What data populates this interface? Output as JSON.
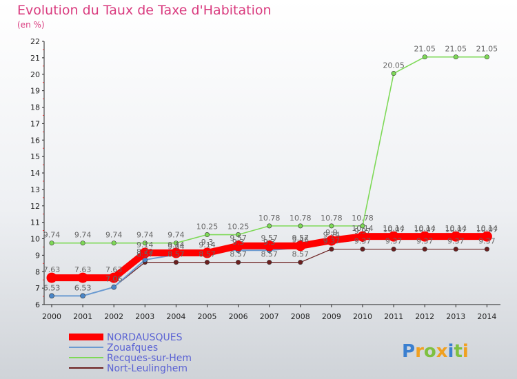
{
  "chart_data": {
    "type": "line",
    "title": "Evolution du Taux de Taxe d'Habitation",
    "subtitle": "(en %)",
    "x": [
      "2000",
      "2001",
      "2002",
      "2003",
      "2004",
      "2005",
      "2006",
      "2007",
      "2008",
      "2009",
      "2010",
      "2011",
      "2012",
      "2013",
      "2014"
    ],
    "ylim": [
      6,
      22
    ],
    "yticks": [
      6,
      7,
      8,
      9,
      10,
      11,
      12,
      13,
      14,
      15,
      16,
      17,
      18,
      19,
      20,
      21,
      22
    ],
    "grid": false,
    "legend_position": "bottom-left",
    "series": [
      {
        "name": "NORDAUSQUES",
        "color": "#ff0000",
        "values": [
          7.63,
          7.63,
          7.63,
          9.14,
          9.14,
          9.14,
          9.57,
          9.57,
          9.57,
          9.9,
          10.14,
          10.14,
          10.14,
          10.14,
          10.14
        ]
      },
      {
        "name": "Zouafques",
        "color": "#6b9bd1",
        "values": [
          6.53,
          6.53,
          7.06,
          8.72,
          9.04,
          9.3,
          9.3,
          9.3,
          9.46,
          9.74,
          9.97,
          10.07,
          10.07,
          10.07,
          10.07
        ]
      },
      {
        "name": "Recques-sur-Hem",
        "color": "#7ed957",
        "values": [
          9.74,
          9.74,
          9.74,
          9.74,
          9.74,
          10.25,
          10.25,
          10.78,
          10.78,
          10.78,
          10.78,
          20.05,
          21.05,
          21.05,
          21.05
        ]
      },
      {
        "name": "Nort-Leulinghem",
        "color": "#6b1f1f",
        "values": [
          6.53,
          6.53,
          7.06,
          8.57,
          8.57,
          8.57,
          8.57,
          8.57,
          8.57,
          9.37,
          9.37,
          9.37,
          9.37,
          9.37,
          9.37
        ]
      }
    ]
  },
  "logo": {
    "text": "Proxiti"
  }
}
